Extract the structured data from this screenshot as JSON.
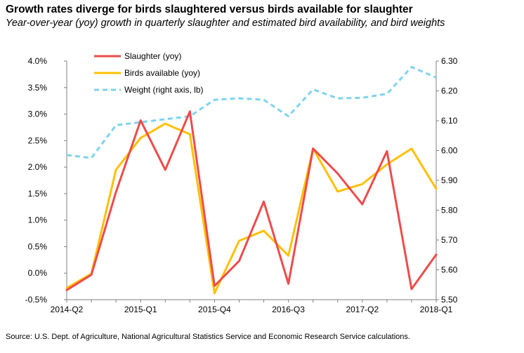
{
  "title": "Growth rates diverge for birds slaughtered versus birds available for slaughter",
  "subtitle": "Year-over-year (yoy) growth in quarterly slaughter and estimated bird availability, and bird weights",
  "source": "Source: U.S. Dept. of Agriculture, National Agricultural Statistics Service and Economic Research Service calculations.",
  "colors": {
    "slaughter": "#ee4b4b",
    "available": "#ffc000",
    "weight": "#7dd3ee"
  },
  "chart_data": {
    "type": "line",
    "x": [
      "2014-Q2",
      "2014-Q3",
      "2014-Q4",
      "2015-Q1",
      "2015-Q2",
      "2015-Q3",
      "2015-Q4",
      "2016-Q1",
      "2016-Q2",
      "2016-Q3",
      "2016-Q4",
      "2017-Q1",
      "2017-Q2",
      "2017-Q3",
      "2017-Q4",
      "2018-Q1"
    ],
    "x_tick_labels": [
      "2014-Q2",
      "2015-Q1",
      "2015-Q4",
      "2016-Q3",
      "2017-Q2",
      "2018-Q1"
    ],
    "y_left": {
      "min": -0.5,
      "max": 4.0,
      "ticks": [
        "-0.5%",
        "0.0%",
        "0.5%",
        "1.0%",
        "1.5%",
        "2.0%",
        "2.5%",
        "3.0%",
        "3.5%",
        "4.0%"
      ]
    },
    "y_right": {
      "min": 5.5,
      "max": 6.3,
      "ticks": [
        "5.50",
        "5.60",
        "5.70",
        "5.80",
        "5.90",
        "6.00",
        "6.10",
        "6.20",
        "6.30"
      ]
    },
    "legend_position": "top-left",
    "series": [
      {
        "name": "Slaughter (yoy)",
        "axis": "left",
        "style": "solid",
        "values": [
          -0.32,
          -0.03,
          1.53,
          2.88,
          1.95,
          3.05,
          -0.24,
          0.23,
          1.35,
          -0.2,
          2.35,
          1.88,
          1.3,
          2.3,
          -0.3,
          0.35
        ]
      },
      {
        "name": "Birds available (yoy)",
        "axis": "left",
        "style": "solid",
        "values": [
          -0.28,
          -0.01,
          1.95,
          2.55,
          2.82,
          2.62,
          -0.38,
          0.61,
          0.8,
          0.33,
          2.35,
          1.54,
          1.68,
          2.05,
          2.35,
          1.59
        ]
      },
      {
        "name": "Weight (right axis, lb)",
        "axis": "right",
        "style": "dashed",
        "values": [
          5.985,
          5.975,
          6.085,
          6.095,
          6.105,
          6.115,
          6.17,
          6.175,
          6.17,
          6.115,
          6.205,
          6.175,
          6.177,
          6.19,
          6.28,
          6.245
        ]
      }
    ]
  }
}
